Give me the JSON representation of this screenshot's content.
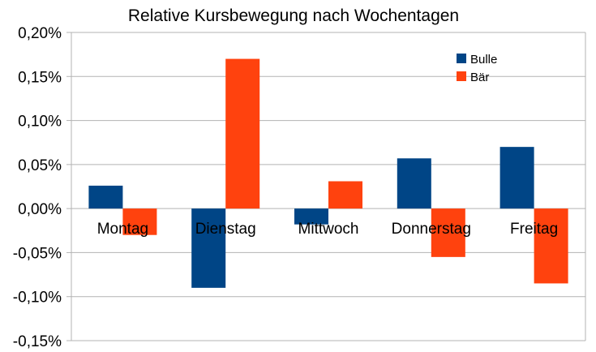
{
  "chart_data": {
    "type": "bar",
    "title": "Relative Kursbewegung nach Wochentagen",
    "categories": [
      "Montag",
      "Dienstag",
      "Mittwoch",
      "Donnerstag",
      "Freitag"
    ],
    "series": [
      {
        "name": "Bulle",
        "color": "#004586",
        "values": [
          0.026,
          -0.09,
          -0.018,
          0.057,
          0.07
        ]
      },
      {
        "name": "Bär",
        "color": "#ff420e",
        "values": [
          -0.03,
          0.17,
          0.031,
          -0.055,
          -0.085
        ]
      }
    ],
    "ylim": [
      -0.15,
      0.2
    ],
    "yticks": [
      0.2,
      0.15,
      0.1,
      0.05,
      0.0,
      -0.05,
      -0.1,
      -0.15
    ],
    "ytick_labels": [
      "0,20%",
      "0,15%",
      "0,10%",
      "0,05%",
      "0,00%",
      "-0,05%",
      "-0,10%",
      "-0,15%"
    ],
    "grid": true,
    "legend_position": "top-right"
  }
}
